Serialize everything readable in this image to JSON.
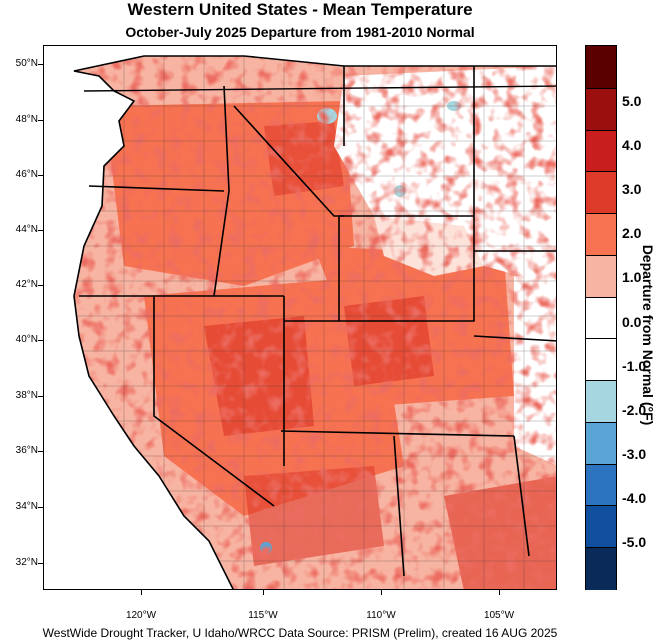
{
  "title": "Western United States - Mean Temperature",
  "subtitle": "October-July 2025  Departure from 1981-2010 Normal",
  "latitude_labels": [
    "50°N",
    "48°N",
    "46°N",
    "44°N",
    "42°N",
    "40°N",
    "38°N",
    "36°N",
    "34°N",
    "32°N"
  ],
  "longitude_labels": [
    "120°W",
    "115°W",
    "110°W",
    "105°W"
  ],
  "legend": {
    "title": "Departure from Normal (°F)",
    "labels": [
      "5.0",
      "4.0",
      "3.0",
      "2.0",
      "1.0",
      "0.0",
      "-1.0",
      "-2.0",
      "-3.0",
      "-4.0",
      "-5.0"
    ],
    "colors": [
      "#5a0000",
      "#9c0f0f",
      "#c81e1e",
      "#de3a2a",
      "#f77250",
      "#f8b4a2",
      "#ffffff",
      "#ffffff",
      "#a6d6e0",
      "#5aa5d6",
      "#2c74bf",
      "#0f4f9e",
      "#0a2a5a"
    ]
  },
  "credit": "WestWide Drought Tracker, U Idaho/WRCC Data Source: PRISM (Prelim), created 16 AUG 2025"
}
